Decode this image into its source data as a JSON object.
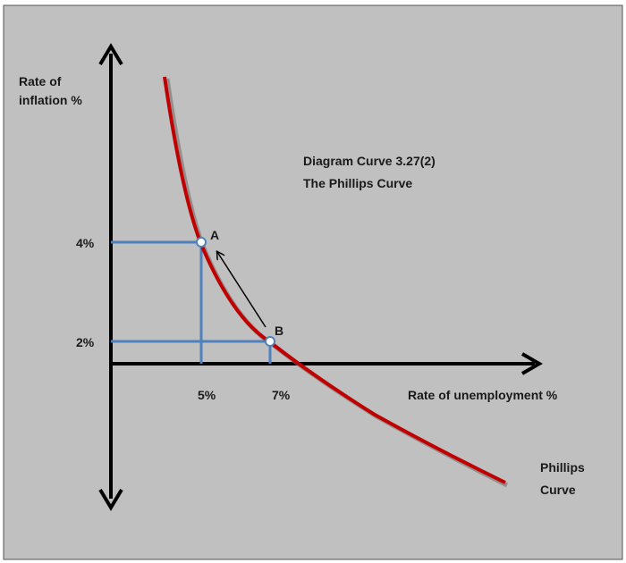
{
  "diagram": {
    "title_line1": "Diagram Curve 3.27(2)",
    "title_line2": "The Phillips Curve",
    "y_axis_label_line1": "Rate of",
    "y_axis_label_line2": "inflation %",
    "x_axis_label": "Rate of unemployment %",
    "curve_label_line1": "Phillips",
    "curve_label_line2": "Curve",
    "y_ticks": [
      "4%",
      "2%"
    ],
    "x_ticks": [
      "5%",
      "7%"
    ],
    "points": [
      {
        "label": "A",
        "unemployment": "5%",
        "inflation": "4%"
      },
      {
        "label": "B",
        "unemployment": "7%",
        "inflation": "2%"
      }
    ],
    "arrow": {
      "from": "B",
      "to": "A"
    },
    "colors": {
      "background": "#c0c0c0",
      "curve": "#c00000",
      "guides": "#4f81bd",
      "axes": "#000000"
    }
  }
}
